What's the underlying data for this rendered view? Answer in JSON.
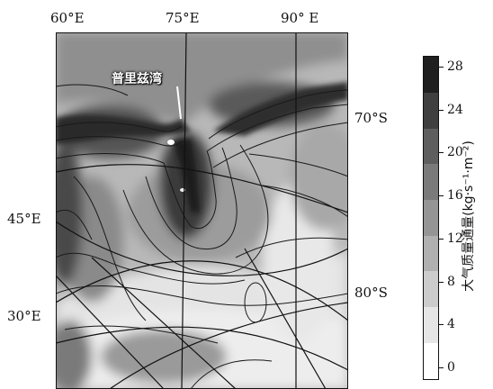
{
  "map": {
    "place_label": "普里兹湾",
    "longitude_labels_top": [
      "60°E",
      "75°E",
      "90° E"
    ],
    "longitude_labels_left": [
      "45°E",
      "30°E"
    ],
    "latitude_labels_right": [
      "70°S",
      "80°S"
    ]
  },
  "colorbar": {
    "title": "大气质量通量(kg·s⁻¹·m⁻²)",
    "ticks": [
      "0",
      "4",
      "8",
      "12",
      "16",
      "20",
      "24",
      "28"
    ],
    "min": 0,
    "max": 30,
    "colors": [
      "#ffffff",
      "#e6e6e6",
      "#cccccc",
      "#b0b0b0",
      "#959595",
      "#7a7a7a",
      "#5e5e5e",
      "#3f3f3f",
      "#1f1f1f"
    ]
  }
}
